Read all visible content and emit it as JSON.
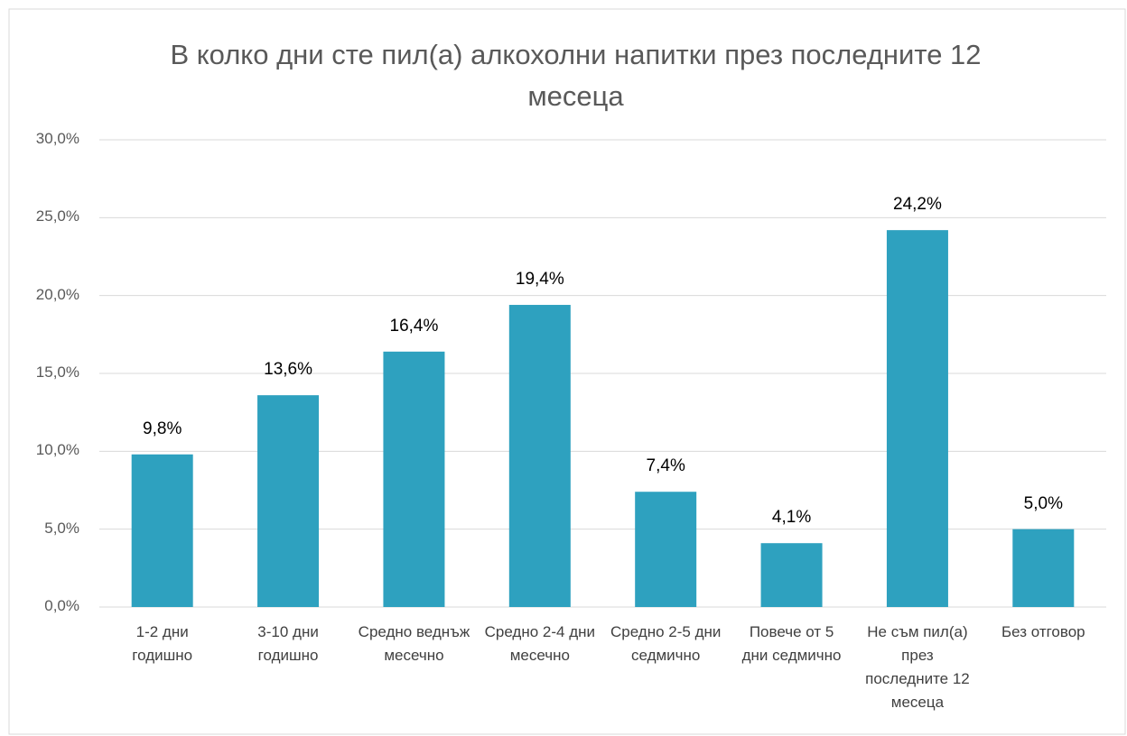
{
  "chart_data": {
    "type": "bar",
    "title": "В колко дни сте пил(а) алкохолни напитки през последните 12 месеца",
    "categories": [
      "1-2 дни годишно",
      "3-10 дни годишно",
      "Средно веднъж месечно",
      "Средно 2-4 дни месечно",
      "Средно 2-5 дни седмично",
      "Повече от 5 дни седмично",
      "Не съм пил(а) през последните 12 месеца",
      "Без отговор"
    ],
    "values": [
      9.8,
      13.6,
      16.4,
      19.4,
      7.4,
      4.1,
      24.2,
      5.0
    ],
    "value_labels": [
      "9,8%",
      "13,6%",
      "16,4%",
      "19,4%",
      "7,4%",
      "4,1%",
      "24,2%",
      "5,0%"
    ],
    "color": "#2ea1bf",
    "ylim": [
      0,
      30
    ],
    "yticks": [
      {
        "value": 0,
        "label": "0,0%"
      },
      {
        "value": 5,
        "label": "5,0%"
      },
      {
        "value": 10,
        "label": "10,0%"
      },
      {
        "value": 15,
        "label": "15,0%"
      },
      {
        "value": 20,
        "label": "20,0%"
      },
      {
        "value": 25,
        "label": "25,0%"
      },
      {
        "value": 30,
        "label": "30,0%"
      }
    ],
    "grid": true
  }
}
